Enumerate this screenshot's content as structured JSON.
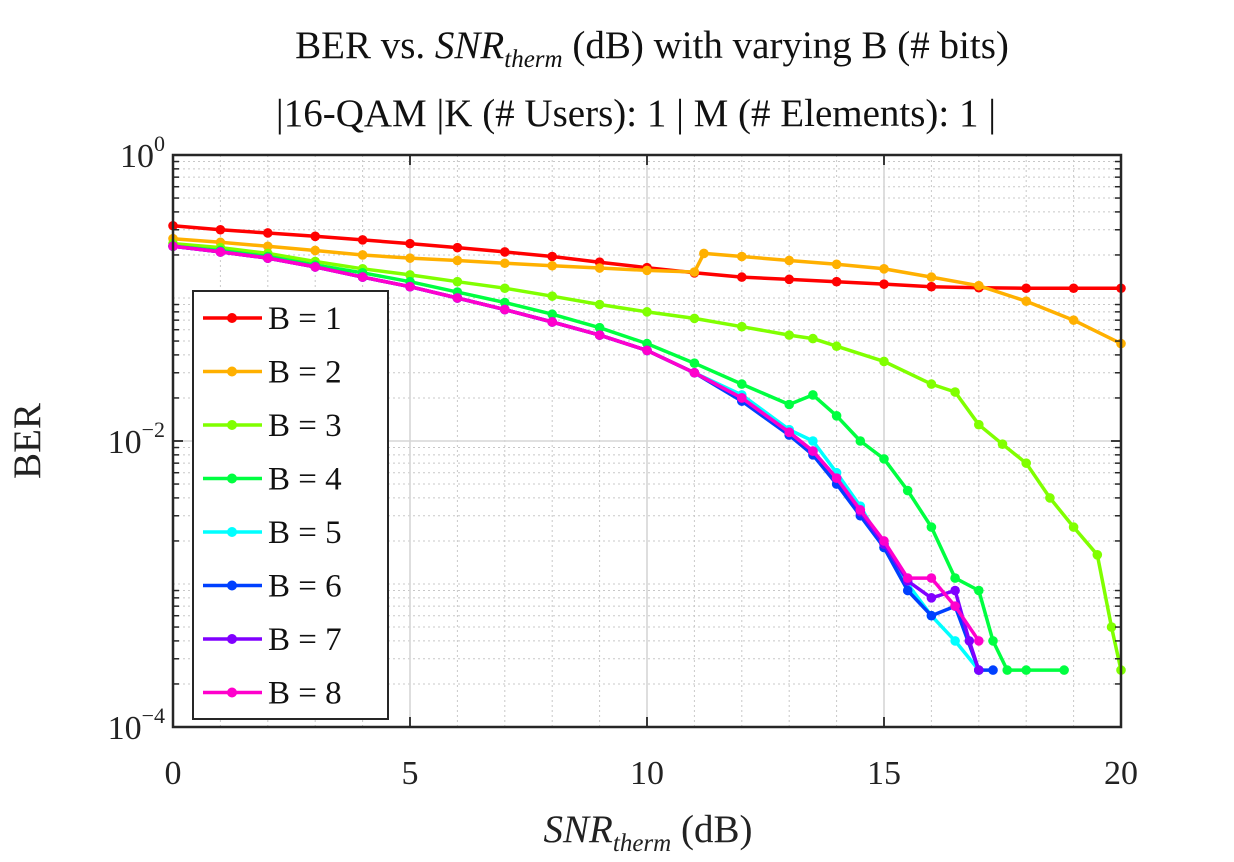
{
  "chart_data": {
    "type": "line",
    "title": {
      "line1_prefix": "BER vs. ",
      "line1_var": "SNR",
      "line1_sub": "therm",
      "line1_suffix": " (dB) with varying B (# bits)",
      "line2": "|16-QAM |K (# Users): 1 | M (# Elements): 1 |"
    },
    "xlabel": {
      "var": "SNR",
      "sub": "therm",
      "suffix": " (dB)"
    },
    "ylabel": "BER",
    "y_scale": "log",
    "xlim": [
      0,
      20
    ],
    "ylim": [
      0.0001,
      1
    ],
    "x_ticks": [
      {
        "value": 0,
        "label": "0"
      },
      {
        "value": 5,
        "label": "5"
      },
      {
        "value": 10,
        "label": "10"
      },
      {
        "value": 15,
        "label": "15"
      },
      {
        "value": 20,
        "label": "20"
      }
    ],
    "y_ticks": [
      {
        "value": 1,
        "base": "10",
        "exp": "0"
      },
      {
        "value": 0.01,
        "base": "10",
        "exp": "−2"
      },
      {
        "value": 0.0001,
        "base": "10",
        "exp": "−4"
      }
    ],
    "grid": true,
    "legend_position": "lower-left",
    "series": [
      {
        "name": "B = 1",
        "color": "#ff0000",
        "points": [
          [
            0,
            0.32
          ],
          [
            1,
            0.3
          ],
          [
            2,
            0.285
          ],
          [
            3,
            0.27
          ],
          [
            4,
            0.255
          ],
          [
            5,
            0.24
          ],
          [
            6,
            0.225
          ],
          [
            7,
            0.21
          ],
          [
            8,
            0.195
          ],
          [
            9,
            0.178
          ],
          [
            10,
            0.163
          ],
          [
            11,
            0.15
          ],
          [
            12,
            0.14
          ],
          [
            13,
            0.135
          ],
          [
            14,
            0.13
          ],
          [
            15,
            0.125
          ],
          [
            16,
            0.12
          ],
          [
            17,
            0.118
          ],
          [
            18,
            0.117
          ],
          [
            19,
            0.117
          ],
          [
            20,
            0.117
          ]
        ]
      },
      {
        "name": "B = 2",
        "color": "#ffb000",
        "points": [
          [
            0,
            0.26
          ],
          [
            1,
            0.245
          ],
          [
            2,
            0.23
          ],
          [
            3,
            0.215
          ],
          [
            4,
            0.2
          ],
          [
            5,
            0.19
          ],
          [
            6,
            0.183
          ],
          [
            7,
            0.175
          ],
          [
            8,
            0.168
          ],
          [
            9,
            0.162
          ],
          [
            10,
            0.156
          ],
          [
            11,
            0.152
          ],
          [
            11.2,
            0.205
          ],
          [
            12,
            0.195
          ],
          [
            13,
            0.183
          ],
          [
            14,
            0.172
          ],
          [
            15,
            0.16
          ],
          [
            16,
            0.14
          ],
          [
            17,
            0.122
          ],
          [
            18,
            0.095
          ],
          [
            19,
            0.07
          ],
          [
            20,
            0.048
          ]
        ]
      },
      {
        "name": "B = 3",
        "color": "#80ff00",
        "points": [
          [
            0,
            0.24
          ],
          [
            1,
            0.225
          ],
          [
            2,
            0.205
          ],
          [
            3,
            0.18
          ],
          [
            4,
            0.16
          ],
          [
            5,
            0.145
          ],
          [
            6,
            0.13
          ],
          [
            7,
            0.117
          ],
          [
            8,
            0.103
          ],
          [
            9,
            0.09
          ],
          [
            10,
            0.08
          ],
          [
            11,
            0.072
          ],
          [
            12,
            0.063
          ],
          [
            13,
            0.055
          ],
          [
            13.5,
            0.052
          ],
          [
            14,
            0.046
          ],
          [
            15,
            0.036
          ],
          [
            16,
            0.025
          ],
          [
            16.5,
            0.022
          ],
          [
            17,
            0.013
          ],
          [
            17.5,
            0.0095
          ],
          [
            18,
            0.007
          ],
          [
            18.5,
            0.004
          ],
          [
            19,
            0.0025
          ],
          [
            19.5,
            0.0016
          ],
          [
            19.8,
            0.0005
          ],
          [
            20,
            0.00025
          ]
        ]
      },
      {
        "name": "B = 4",
        "color": "#00ff40",
        "points": [
          [
            0,
            0.23
          ],
          [
            1,
            0.215
          ],
          [
            2,
            0.195
          ],
          [
            3,
            0.17
          ],
          [
            4,
            0.15
          ],
          [
            5,
            0.13
          ],
          [
            6,
            0.11
          ],
          [
            7,
            0.093
          ],
          [
            8,
            0.077
          ],
          [
            9,
            0.062
          ],
          [
            10,
            0.048
          ],
          [
            11,
            0.035
          ],
          [
            12,
            0.025
          ],
          [
            13,
            0.018
          ],
          [
            13.5,
            0.021
          ],
          [
            14,
            0.015
          ],
          [
            14.5,
            0.01
          ],
          [
            15,
            0.0075
          ],
          [
            15.5,
            0.0045
          ],
          [
            16,
            0.0025
          ],
          [
            16.5,
            0.0011
          ],
          [
            17,
            0.0009
          ],
          [
            17.3,
            0.0004
          ],
          [
            17.6,
            0.00025
          ],
          [
            18,
            0.00025
          ],
          [
            18.8,
            0.00025
          ]
        ]
      },
      {
        "name": "B = 5",
        "color": "#00ffff",
        "points": [
          [
            0,
            0.23
          ],
          [
            1,
            0.21
          ],
          [
            2,
            0.19
          ],
          [
            3,
            0.165
          ],
          [
            4,
            0.14
          ],
          [
            5,
            0.12
          ],
          [
            6,
            0.1
          ],
          [
            7,
            0.083
          ],
          [
            8,
            0.068
          ],
          [
            9,
            0.055
          ],
          [
            10,
            0.043
          ],
          [
            11,
            0.03
          ],
          [
            12,
            0.021
          ],
          [
            13,
            0.012
          ],
          [
            13.5,
            0.01
          ],
          [
            14,
            0.006
          ],
          [
            14.5,
            0.0035
          ],
          [
            15,
            0.0018
          ],
          [
            15.5,
            0.001
          ],
          [
            16,
            0.0006
          ],
          [
            16.5,
            0.0004
          ],
          [
            17,
            0.00025
          ]
        ]
      },
      {
        "name": "B = 6",
        "color": "#0040ff",
        "points": [
          [
            0,
            0.23
          ],
          [
            1,
            0.21
          ],
          [
            2,
            0.19
          ],
          [
            3,
            0.165
          ],
          [
            4,
            0.14
          ],
          [
            5,
            0.12
          ],
          [
            6,
            0.1
          ],
          [
            7,
            0.083
          ],
          [
            8,
            0.068
          ],
          [
            9,
            0.055
          ],
          [
            10,
            0.043
          ],
          [
            11,
            0.03
          ],
          [
            12,
            0.019
          ],
          [
            13,
            0.011
          ],
          [
            13.5,
            0.008
          ],
          [
            14,
            0.005
          ],
          [
            14.5,
            0.003
          ],
          [
            15,
            0.0018
          ],
          [
            15.5,
            0.0009
          ],
          [
            16,
            0.0006
          ],
          [
            16.5,
            0.0007
          ],
          [
            17,
            0.00025
          ],
          [
            17.3,
            0.00025
          ]
        ]
      },
      {
        "name": "B = 7",
        "color": "#8000ff",
        "points": [
          [
            0,
            0.23
          ],
          [
            1,
            0.21
          ],
          [
            2,
            0.19
          ],
          [
            3,
            0.165
          ],
          [
            4,
            0.14
          ],
          [
            5,
            0.12
          ],
          [
            6,
            0.1
          ],
          [
            7,
            0.083
          ],
          [
            8,
            0.068
          ],
          [
            9,
            0.055
          ],
          [
            10,
            0.043
          ],
          [
            11,
            0.03
          ],
          [
            12,
            0.02
          ],
          [
            13,
            0.0115
          ],
          [
            13.5,
            0.0085
          ],
          [
            14,
            0.0055
          ],
          [
            14.5,
            0.0032
          ],
          [
            15,
            0.0019
          ],
          [
            15.5,
            0.00105
          ],
          [
            16,
            0.0008
          ],
          [
            16.5,
            0.0009
          ],
          [
            16.8,
            0.0004
          ],
          [
            17,
            0.00025
          ]
        ]
      },
      {
        "name": "B = 8",
        "color": "#ff00cc",
        "points": [
          [
            0,
            0.23
          ],
          [
            1,
            0.21
          ],
          [
            2,
            0.19
          ],
          [
            3,
            0.165
          ],
          [
            4,
            0.14
          ],
          [
            5,
            0.12
          ],
          [
            6,
            0.1
          ],
          [
            7,
            0.083
          ],
          [
            8,
            0.068
          ],
          [
            9,
            0.055
          ],
          [
            10,
            0.043
          ],
          [
            11,
            0.03
          ],
          [
            12,
            0.02
          ],
          [
            13,
            0.0115
          ],
          [
            13.5,
            0.0085
          ],
          [
            14,
            0.0055
          ],
          [
            14.5,
            0.0033
          ],
          [
            15,
            0.002
          ],
          [
            15.5,
            0.0011
          ],
          [
            16,
            0.0011
          ],
          [
            16.5,
            0.0007
          ],
          [
            17,
            0.0004
          ]
        ]
      }
    ]
  }
}
